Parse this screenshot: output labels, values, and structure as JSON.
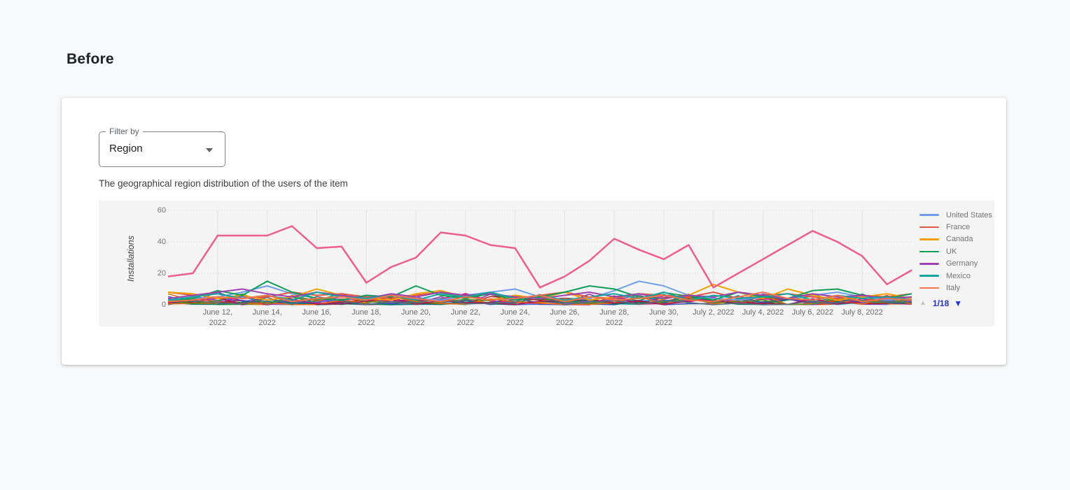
{
  "page": {
    "heading": "Before"
  },
  "filter": {
    "label": "Filter by",
    "value": "Region"
  },
  "description": "The geographical region distribution of the users of the item",
  "colors": {
    "page_background": "#f8f9fa",
    "panel_background": "#f4f4f4",
    "grid_line": "#e2e2e2",
    "pager_active_blue": "#2430cf",
    "pager_disabled_gray": "#c5c5c5"
  },
  "chart_data": {
    "type": "line",
    "title": "",
    "xlabel": "",
    "ylabel": "Installations",
    "ylim": [
      0,
      60
    ],
    "y_ticks": [
      0,
      20,
      40,
      60
    ],
    "grid": true,
    "legend_position": "right",
    "x": [
      "June 10, 2022",
      "June 11, 2022",
      "June 12, 2022",
      "June 13, 2022",
      "June 14, 2022",
      "June 15, 2022",
      "June 16, 2022",
      "June 17, 2022",
      "June 18, 2022",
      "June 19, 2022",
      "June 20, 2022",
      "June 21, 2022",
      "June 22, 2022",
      "June 23, 2022",
      "June 24, 2022",
      "June 25, 2022",
      "June 26, 2022",
      "June 27, 2022",
      "June 28, 2022",
      "June 29, 2022",
      "June 30, 2022",
      "July 1, 2022",
      "July 2, 2022",
      "July 3, 2022",
      "July 4, 2022",
      "July 5, 2022",
      "July 6, 2022",
      "July 7, 2022",
      "July 8, 2022",
      "July 9, 2022",
      "July 10, 2022"
    ],
    "x_tick_indices": [
      2,
      4,
      6,
      8,
      10,
      12,
      14,
      16,
      18,
      20,
      22,
      24,
      26,
      28
    ],
    "x_tick_labels": [
      "June 12, 2022",
      "June 14, 2022",
      "June 16, 2022",
      "June 18, 2022",
      "June 20, 2022",
      "June 22, 2022",
      "June 24, 2022",
      "June 26, 2022",
      "June 28, 2022",
      "June 30, 2022",
      "July 2, 2022",
      "July 4, 2022",
      "July 6, 2022",
      "July 8, 2022"
    ],
    "series": [
      {
        "name": "",
        "note": "dominant highlighted series, name not visible on this legend page",
        "color": "#ed5e8b",
        "in_legend": false,
        "values": [
          18,
          20,
          44,
          44,
          44,
          50,
          36,
          37,
          14,
          24,
          30,
          46,
          44,
          38,
          36,
          11,
          18,
          28,
          42,
          35,
          29,
          38,
          11,
          20,
          29,
          38,
          47,
          40,
          31,
          13,
          22
        ]
      },
      {
        "name": "United States",
        "color": "#6e9eeb",
        "in_legend": true,
        "values": [
          3,
          4,
          5,
          8,
          12,
          7,
          4,
          3,
          5,
          6,
          4,
          3,
          6,
          8,
          10,
          5,
          3,
          4,
          9,
          15,
          12,
          6,
          4,
          3,
          5,
          4,
          6,
          8,
          5,
          3,
          4
        ]
      },
      {
        "name": "France",
        "color": "#e25544",
        "in_legend": true,
        "values": [
          8,
          6,
          7,
          4,
          5,
          8,
          6,
          7,
          5,
          4,
          6,
          8,
          5,
          7,
          4,
          6,
          8,
          5,
          4,
          7,
          6,
          5,
          8,
          4,
          6,
          7,
          5,
          4,
          6,
          5,
          7
        ]
      },
      {
        "name": "Canada",
        "color": "#f2a103",
        "in_legend": true,
        "values": [
          8,
          7,
          4,
          6,
          3,
          5,
          10,
          6,
          4,
          3,
          7,
          9,
          5,
          3,
          6,
          4,
          8,
          3,
          5,
          7,
          4,
          6,
          13,
          8,
          4,
          10,
          6,
          3,
          5,
          7,
          4
        ]
      },
      {
        "name": "UK",
        "color": "#0f9d58",
        "in_legend": true,
        "values": [
          2,
          4,
          9,
          6,
          15,
          8,
          4,
          3,
          6,
          5,
          12,
          6,
          4,
          7,
          3,
          5,
          8,
          12,
          10,
          5,
          4,
          6,
          3,
          8,
          5,
          4,
          9,
          10,
          6,
          4,
          7
        ]
      },
      {
        "name": "Germany",
        "color": "#9e42b0",
        "in_legend": true,
        "values": [
          4,
          6,
          8,
          10,
          7,
          5,
          8,
          6,
          4,
          7,
          5,
          8,
          6,
          7,
          5,
          4,
          6,
          8,
          5,
          7,
          4,
          6,
          5,
          8,
          6,
          4,
          7,
          5,
          6,
          4,
          5
        ]
      },
      {
        "name": "Mexico",
        "color": "#12a5a0",
        "in_legend": true,
        "values": [
          3,
          5,
          7,
          4,
          6,
          3,
          8,
          5,
          4,
          6,
          3,
          7,
          5,
          8,
          4,
          6,
          3,
          5,
          7,
          4,
          8,
          3,
          6,
          4,
          5,
          7,
          3,
          6,
          4,
          5,
          3
        ]
      },
      {
        "name": "Italy",
        "color": "#f4734c",
        "in_legend": true,
        "values": [
          2,
          3,
          5,
          4,
          6,
          2,
          4,
          5,
          3,
          6,
          4,
          2,
          5,
          3,
          4,
          6,
          2,
          5,
          3,
          4,
          6,
          3,
          2,
          5,
          8,
          4,
          3,
          6,
          2,
          4,
          3
        ]
      }
    ],
    "legend": {
      "entries": [
        "United States",
        "France",
        "Canada",
        "UK",
        "Germany",
        "Mexico",
        "Italy"
      ],
      "page_indicator": "1/18"
    }
  }
}
